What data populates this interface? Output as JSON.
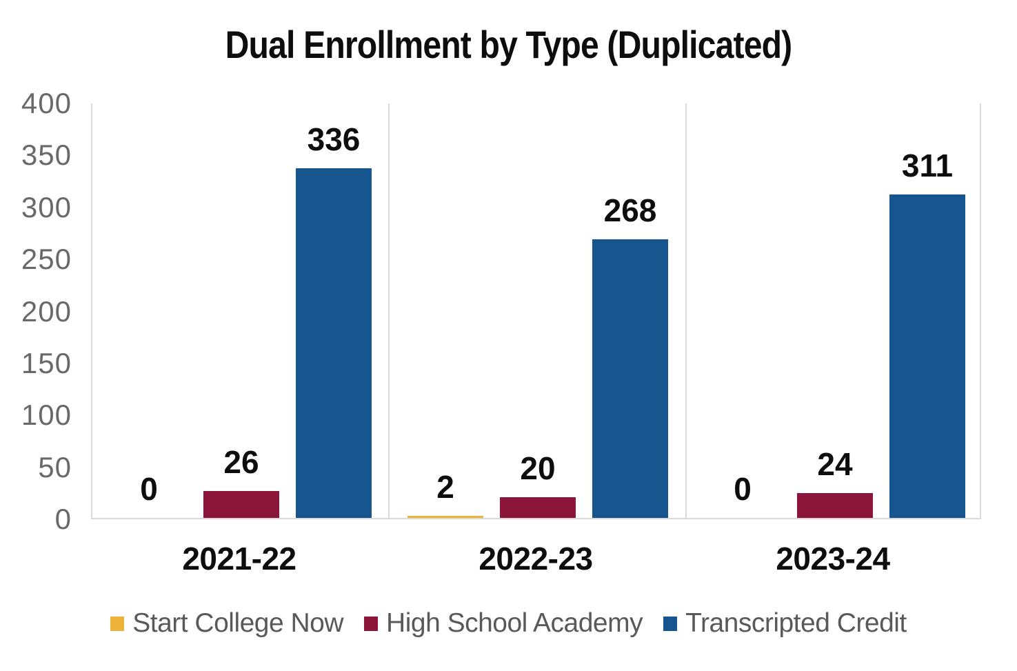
{
  "chart_data": {
    "type": "bar",
    "title": "Dual Enrollment by Type (Duplicated)",
    "categories": [
      "2021-22",
      "2022-23",
      "2023-24"
    ],
    "series": [
      {
        "name": "Start College Now",
        "color": "#EDB23A",
        "values": [
          0,
          2,
          0
        ]
      },
      {
        "name": "High School Academy",
        "color": "#8C153C",
        "values": [
          26,
          20,
          24
        ]
      },
      {
        "name": "Transcripted Credit",
        "color": "#17558F",
        "values": [
          336,
          268,
          311
        ]
      }
    ],
    "data_labels": [
      [
        "0",
        "26",
        "336"
      ],
      [
        "2",
        "20",
        "268"
      ],
      [
        "0",
        "24",
        "311"
      ]
    ],
    "ylim": [
      0,
      400
    ],
    "yticks": [
      "0",
      "50",
      "100",
      "150",
      "200",
      "250",
      "300",
      "350",
      "400"
    ],
    "grid": "vertical category separators only, no horizontal gridlines",
    "legend_position": "bottom",
    "colors": {
      "title_text": "#0d0d0d",
      "value_label_text": "#0d0d0d",
      "axis_tick_text": "#696969",
      "legend_text": "#595959",
      "axis_line": "#d9d9d9",
      "background": "#ffffff"
    }
  }
}
